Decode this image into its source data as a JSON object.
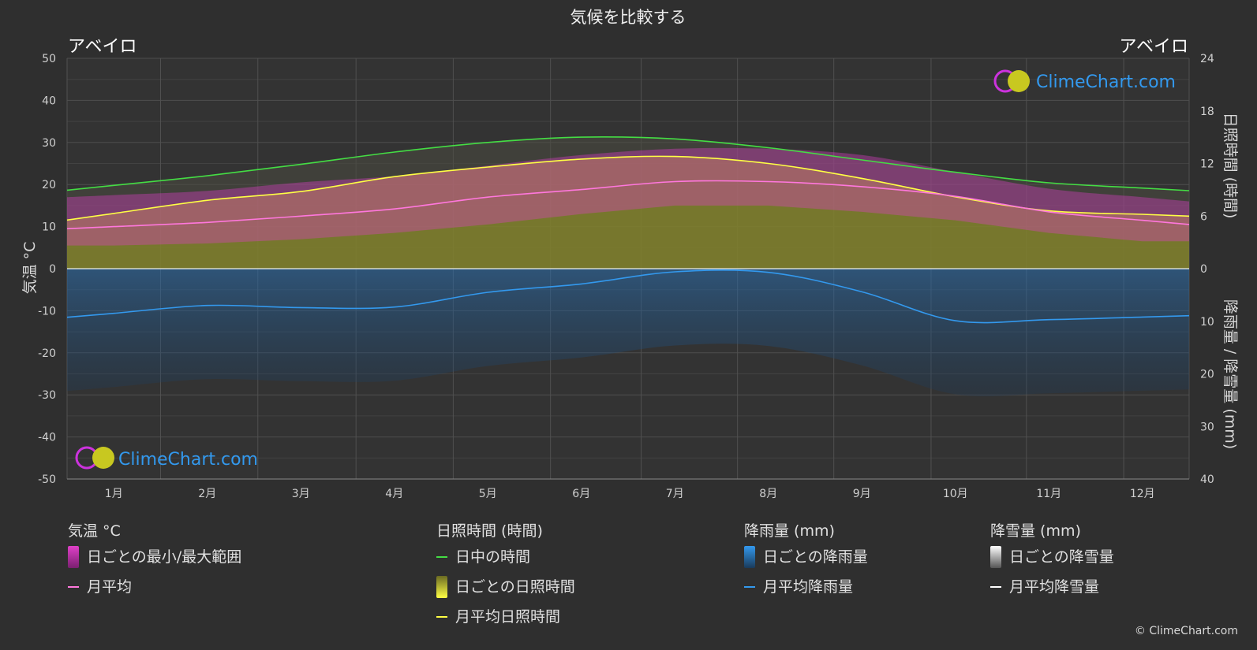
{
  "title": "気候を比較する",
  "location_left": "アベイロ",
  "location_right": "アベイロ",
  "axes": {
    "left_label": "気温 °C",
    "right_top_label": "日照時間 (時間)",
    "right_bottom_label": "降雨量 / 降雪量 (mm)"
  },
  "watermark": "ClimeChart.com",
  "copyright": "© ClimeChart.com",
  "colors": {
    "background": "#2f2f2f",
    "daylight": "#44dd44",
    "sunshine": "#ffff44",
    "sunshine_fill": "#8a8a2a",
    "temp_range": "#e040c8",
    "temp_avg": "#ff77dd",
    "rain": "#2a6fb0",
    "rain_avg": "#3399ee",
    "snow_avg": "#ffffff",
    "watermark": "#3399ee"
  },
  "legend": {
    "temperature": {
      "header": "気温 °C",
      "items": [
        "日ごとの最小/最大範囲",
        "月平均"
      ]
    },
    "sunshine": {
      "header": "日照時間 (時間)",
      "items": [
        "日中の時間",
        "日ごとの日照時間",
        "月平均日照時間"
      ]
    },
    "rain": {
      "header": "降雨量 (mm)",
      "items": [
        "日ごとの降雨量",
        "月平均降雨量"
      ]
    },
    "snow": {
      "header": "降雪量 (mm)",
      "items": [
        "日ごとの降雪量",
        "月平均降雪量"
      ]
    }
  },
  "chart_data": {
    "type": "line",
    "categories": [
      "1月",
      "2月",
      "3月",
      "4月",
      "5月",
      "6月",
      "7月",
      "8月",
      "9月",
      "10月",
      "11月",
      "12月"
    ],
    "y_left": {
      "ticks": [
        50,
        40,
        30,
        20,
        10,
        0,
        -10,
        -20,
        -30,
        -40,
        -50
      ],
      "range": [
        -50,
        50
      ]
    },
    "y_right_top": {
      "ticks": [
        24,
        18,
        12,
        6,
        0
      ],
      "range": [
        0,
        24
      ]
    },
    "y_right_bottom": {
      "ticks": [
        0,
        10,
        20,
        30,
        40
      ],
      "range": [
        0,
        40
      ]
    },
    "grid": true,
    "series": [
      {
        "name": "日中の時間",
        "axis": "hours",
        "values": [
          9.5,
          10.6,
          11.9,
          13.3,
          14.4,
          15.0,
          14.8,
          13.8,
          12.4,
          11.0,
          9.8,
          9.2
        ]
      },
      {
        "name": "月平均日照時間",
        "axis": "hours",
        "values": [
          6.3,
          7.8,
          8.8,
          10.5,
          11.6,
          12.5,
          12.8,
          12.0,
          10.3,
          8.2,
          6.6,
          6.2
        ]
      },
      {
        "name": "月平均",
        "axis": "temperature",
        "values": [
          10.0,
          11.0,
          12.5,
          14.2,
          17.0,
          18.8,
          20.7,
          20.7,
          19.5,
          17.2,
          13.5,
          11.5
        ]
      },
      {
        "name": "日ごとの最小/最大範囲 (最大)",
        "axis": "temperature",
        "values": [
          17.5,
          18.5,
          20.5,
          22.0,
          24.5,
          27.0,
          28.5,
          28.5,
          27.0,
          23.0,
          19.0,
          17.0
        ]
      },
      {
        "name": "日ごとの最小/最大範囲 (最小)",
        "axis": "temperature",
        "values": [
          5.5,
          6.0,
          7.0,
          8.5,
          10.5,
          13.0,
          15.0,
          15.0,
          13.5,
          11.5,
          8.5,
          6.5
        ]
      },
      {
        "name": "月平均降雨量",
        "axis": "precipitation",
        "values": [
          8.5,
          7.0,
          7.4,
          7.3,
          4.5,
          2.9,
          0.6,
          0.7,
          4.4,
          9.9,
          9.7,
          9.2
        ]
      },
      {
        "name": "月平均降雪量",
        "axis": "precipitation",
        "values": [
          0,
          0,
          0,
          0,
          0,
          0,
          0,
          0,
          0,
          0,
          0,
          0
        ]
      }
    ]
  }
}
